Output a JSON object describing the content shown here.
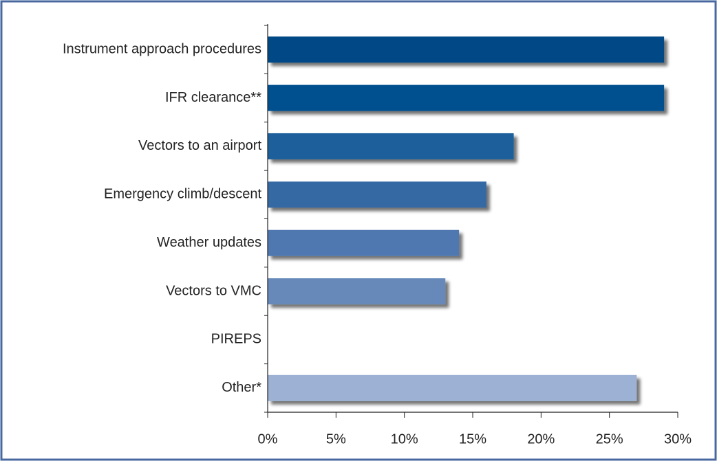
{
  "chart_data": {
    "type": "barh",
    "categories": [
      "Instrument approach procedures",
      "IFR clearance**",
      "Vectors to an airport",
      "Emergency climb/descent",
      "Weather updates",
      "Vectors to VMC",
      "PIREPS",
      "Other*"
    ],
    "values": [
      29,
      29,
      18,
      16,
      14,
      13,
      0,
      27
    ],
    "colors": [
      "#004a86",
      "#00508f",
      "#1d5f9b",
      "#3669a3",
      "#4f78b0",
      "#6689ba",
      "#7f9bc6",
      "#9cb1d3"
    ],
    "xlim": [
      0,
      30
    ],
    "xticks": [
      {
        "value": 0,
        "label": "0%"
      },
      {
        "value": 5,
        "label": "5%"
      },
      {
        "value": 10,
        "label": "10%"
      },
      {
        "value": 15,
        "label": "15%"
      },
      {
        "value": 20,
        "label": "20%"
      },
      {
        "value": 25,
        "label": "25%"
      },
      {
        "value": 30,
        "label": "30%"
      }
    ]
  }
}
